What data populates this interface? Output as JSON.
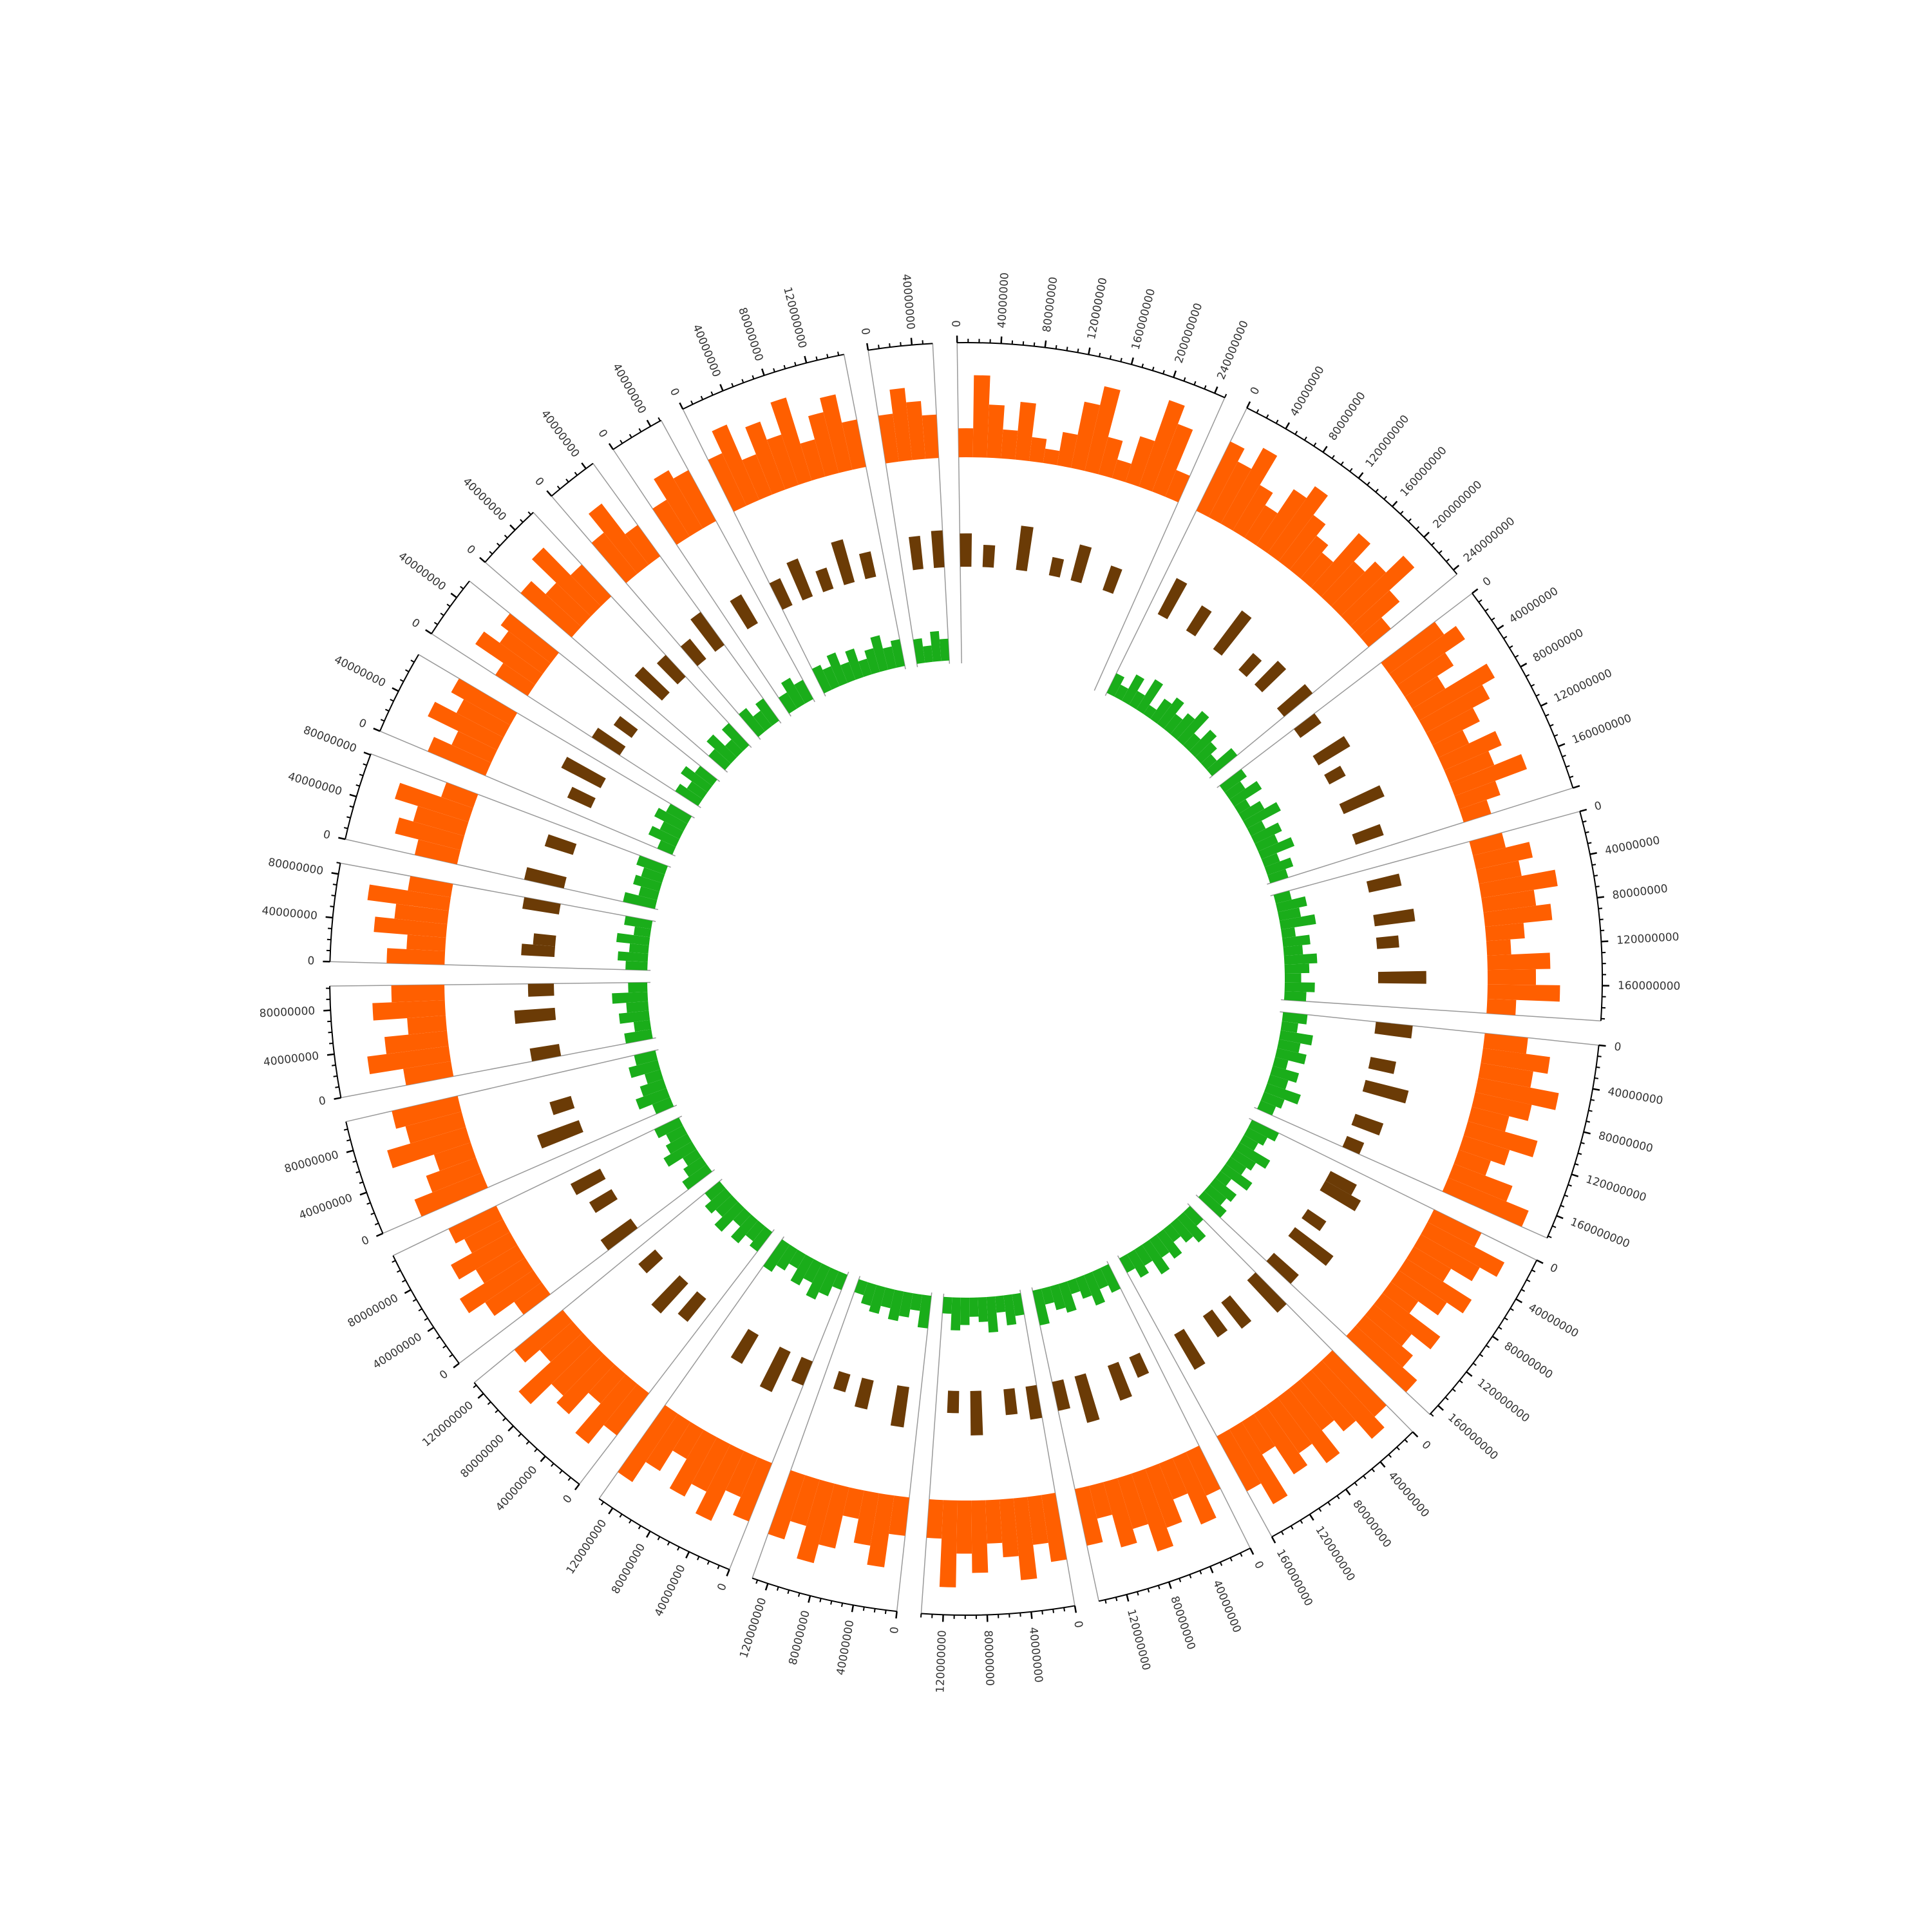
{
  "chart_data": {
    "type": "circos",
    "title": "",
    "colors": {
      "outer_track": "#ff5f00",
      "middle_track": "#6b3b06",
      "inner_track": "#1aad1a",
      "axis": "#000000",
      "separator": "#999999",
      "label": "#333333"
    },
    "grid": true,
    "tick_step": 40000000,
    "chromosomes": [
      {
        "length": 250000000,
        "tick_labels": [
          "0",
          "40000000",
          "80000000",
          "120000000",
          "160000000",
          "200000000",
          "240000000"
        ]
      },
      {
        "length": 245000000,
        "tick_labels": [
          "0",
          "40000000",
          "80000000",
          "120000000",
          "160000000",
          "200000000",
          "240000000"
        ]
      },
      {
        "length": 200000000,
        "tick_labels": [
          "0",
          "40000000",
          "80000000",
          "120000000",
          "160000000"
        ]
      },
      {
        "length": 192000000,
        "tick_labels": [
          "0",
          "40000000",
          "80000000",
          "120000000",
          "160000000"
        ]
      },
      {
        "length": 182000000,
        "tick_labels": [
          "0",
          "40000000",
          "80000000",
          "120000000",
          "160000000"
        ]
      },
      {
        "length": 171000000,
        "tick_labels": [
          "0",
          "40000000",
          "80000000",
          "120000000",
          "160000000"
        ]
      },
      {
        "length": 160000000,
        "tick_labels": [
          "0",
          "40000000",
          "80000000",
          "120000000",
          "160000000"
        ]
      },
      {
        "length": 146000000,
        "tick_labels": [
          "0",
          "40000000",
          "80000000",
          "120000000"
        ]
      },
      {
        "length": 140000000,
        "tick_labels": [
          "0",
          "40000000",
          "80000000",
          "120000000"
        ]
      },
      {
        "length": 135000000,
        "tick_labels": [
          "0",
          "40000000",
          "80000000",
          "120000000"
        ]
      },
      {
        "length": 135000000,
        "tick_labels": [
          "0",
          "40000000",
          "80000000",
          "120000000"
        ]
      },
      {
        "length": 133000000,
        "tick_labels": [
          "0",
          "40000000",
          "80000000",
          "120000000"
        ]
      },
      {
        "length": 115000000,
        "tick_labels": [
          "0",
          "40000000",
          "80000000"
        ]
      },
      {
        "length": 107000000,
        "tick_labels": [
          "0",
          "40000000",
          "80000000"
        ]
      },
      {
        "length": 102000000,
        "tick_labels": [
          "0",
          "40000000",
          "80000000"
        ]
      },
      {
        "length": 90000000,
        "tick_labels": [
          "0",
          "40000000",
          "80000000"
        ]
      },
      {
        "length": 81000000,
        "tick_labels": [
          "0",
          "40000000",
          "80000000"
        ]
      },
      {
        "length": 78000000,
        "tick_labels": [
          "0",
          "40000000"
        ]
      },
      {
        "length": 59000000,
        "tick_labels": [
          "0",
          "40000000"
        ]
      },
      {
        "length": 63000000,
        "tick_labels": [
          "0",
          "40000000"
        ]
      },
      {
        "length": 48000000,
        "tick_labels": [
          "0",
          "40000000"
        ]
      },
      {
        "length": 51000000,
        "tick_labels": [
          "0",
          "40000000"
        ]
      },
      {
        "length": 155000000,
        "tick_labels": [
          "0",
          "40000000",
          "80000000",
          "120000000"
        ]
      },
      {
        "length": 59000000,
        "tick_labels": [
          "0",
          "40000000"
        ]
      }
    ],
    "tracks": [
      {
        "values": [
          [
            0.3,
            0.85,
            0.55,
            0.3,
            0.6,
            0.25,
            0.15,
            0.35,
            0.7,
            0.9,
            0.4,
            0.2,
            0.5,
            0.95,
            0.75,
            0.3
          ],
          [
            0.8,
            0.65,
            0.9,
            0.55,
            0.4,
            0.7,
            0.85,
            0.6,
            0.45,
            0.35,
            0.75,
            0.5,
            0.65,
            0.9,
            0.55,
            0.3
          ],
          [
            0.7,
            0.85,
            0.6,
            0.4,
            0.9,
            0.75,
            0.55,
            0.35,
            0.65,
            0.5,
            0.8,
            0.45,
            0.3
          ],
          [
            0.35,
            0.6,
            0.45,
            0.8,
            0.55,
            0.7,
            0.4,
            0.25,
            0.65,
            0.5,
            0.75,
            0.3
          ],
          [
            0.45,
            0.7,
            0.55,
            0.85,
            0.6,
            0.4,
            0.75,
            0.5,
            0.35,
            0.65,
            0.9
          ],
          [
            0.55,
            0.9,
            0.7,
            0.45,
            0.8,
            0.6,
            0.35,
            0.75,
            0.5,
            0.65,
            0.85
          ],
          [
            0.8,
            0.95,
            0.7,
            0.55,
            0.85,
            0.6,
            0.75,
            0.4,
            0.9,
            0.65
          ],
          [
            0.5,
            0.75,
            0.4,
            0.65,
            0.85,
            0.55,
            0.7,
            0.35,
            0.6
          ],
          [
            0.7,
            0.5,
            0.85,
            0.6,
            0.45,
            0.75,
            0.55,
            0.9,
            0.4
          ],
          [
            0.4,
            0.75,
            0.55,
            0.3,
            0.65,
            0.85,
            0.5,
            0.7
          ],
          [
            0.65,
            0.45,
            0.8,
            0.55,
            0.7,
            0.35,
            0.6,
            0.85
          ],
          [
            0.55,
            0.8,
            0.4,
            0.7,
            0.6,
            0.9,
            0.45,
            0.65
          ],
          [
            0.35,
            0.6,
            0.8,
            0.5,
            0.7,
            0.45,
            0.55
          ],
          [
            0.75,
            0.55,
            0.4,
            0.85,
            0.6,
            0.7
          ],
          [
            0.5,
            0.85,
            0.65,
            0.4,
            0.75,
            0.55
          ],
          [
            0.6,
            0.4,
            0.75,
            0.55,
            0.85,
            0.45
          ],
          [
            0.45,
            0.7,
            0.55,
            0.8,
            0.35
          ],
          [
            0.65,
            0.45,
            0.8,
            0.55,
            0.7
          ],
          [
            0.4,
            0.75,
            0.55,
            0.65
          ],
          [
            0.7,
            0.5,
            0.85,
            0.45
          ],
          [
            0.55,
            0.8,
            0.4
          ],
          [
            0.45,
            0.7,
            0.6
          ],
          [
            0.6,
            0.85,
            0.45,
            0.75,
            0.55,
            0.9,
            0.4,
            0.65,
            0.8,
            0.5
          ],
          [
            0.5,
            0.75,
            0.6,
            0.45
          ]
        ]
      },
      {
        "values": [
          [
            0.45,
            0,
            0.3,
            0,
            0,
            0.6,
            0,
            0,
            0.25,
            0,
            0.5,
            0,
            0,
            0.35,
            0,
            0
          ],
          [
            0,
            0.55,
            0,
            0,
            0.4,
            0,
            0,
            0.65,
            0,
            0,
            0.3,
            0,
            0.45,
            0,
            0,
            0.5
          ],
          [
            0.35,
            0,
            0,
            0.5,
            0,
            0.25,
            0,
            0,
            0.6,
            0,
            0,
            0.4,
            0
          ],
          [
            0,
            0.45,
            0,
            0,
            0.55,
            0,
            0.3,
            0,
            0,
            0.65,
            0,
            0
          ],
          [
            0.5,
            0,
            0,
            0.35,
            0,
            0.6,
            0,
            0,
            0.4,
            0,
            0.25
          ],
          [
            0,
            0.4,
            0.55,
            0,
            0,
            0.3,
            0,
            0.65,
            0,
            0,
            0.45
          ],
          [
            0.6,
            0,
            0,
            0.45,
            0,
            0.35,
            0,
            0,
            0.55,
            0
          ],
          [
            0,
            0.3,
            0,
            0.5,
            0,
            0,
            0.65,
            0,
            0.4
          ],
          [
            0.45,
            0,
            0.35,
            0,
            0,
            0.6,
            0,
            0.3,
            0
          ],
          [
            0,
            0.55,
            0,
            0,
            0.4,
            0,
            0.25,
            0
          ],
          [
            0.35,
            0,
            0.6,
            0,
            0,
            0.45,
            0,
            0
          ],
          [
            0,
            0.4,
            0,
            0.55,
            0,
            0,
            0.3,
            0
          ],
          [
            0.5,
            0,
            0,
            0.35,
            0,
            0.45,
            0
          ],
          [
            0,
            0.6,
            0,
            0.3,
            0,
            0
          ],
          [
            0.4,
            0,
            0,
            0.55,
            0,
            0.35
          ],
          [
            0,
            0.45,
            0.3,
            0,
            0,
            0.5
          ],
          [
            0.55,
            0,
            0,
            0.4,
            0
          ],
          [
            0,
            0.35,
            0,
            0.6,
            0
          ],
          [
            0.45,
            0,
            0.3,
            0
          ],
          [
            0,
            0.5,
            0,
            0.4
          ],
          [
            0.35,
            0,
            0.55
          ],
          [
            0,
            0.45,
            0
          ],
          [
            0.4,
            0,
            0.55,
            0,
            0.3,
            0,
            0.6,
            0,
            0.35,
            0
          ],
          [
            0,
            0.45,
            0,
            0.5
          ]
        ]
      },
      {
        "values": [
          [
            0,
            0,
            0,
            0,
            0,
            0,
            0,
            0,
            0,
            0,
            0,
            0,
            0,
            0,
            0,
            0
          ],
          [
            0.4,
            0.25,
            0.55,
            0.3,
            0.65,
            0.2,
            0.45,
            0.6,
            0.35,
            0.5,
            0.7,
            0.3,
            0.55,
            0.4,
            0.25,
            0.6
          ],
          [
            0.5,
            0.35,
            0.6,
            0.25,
            0.45,
            0.7,
            0.3,
            0.55,
            0.4,
            0.65,
            0.3,
            0.5,
            0.35
          ],
          [
            0.3,
            0.55,
            0.4,
            0.65,
            0.25,
            0.5,
            0.35,
            0.6,
            0.45,
            0.3,
            0.55,
            0.4
          ],
          [
            0.45,
            0.3,
            0.6,
            0.4,
            0.55,
            0.25,
            0.5,
            0.35,
            0.65,
            0.4,
            0.3
          ],
          [
            0.55,
            0.4,
            0.3,
            0.65,
            0.45,
            0.35,
            0.6,
            0.25,
            0.5,
            0.4,
            0.55
          ],
          [
            0.35,
            0.6,
            0.45,
            0.3,
            0.55,
            0.4,
            0.65,
            0.35,
            0.5,
            0.3
          ],
          [
            0.5,
            0.35,
            0.6,
            0.4,
            0.25,
            0.55,
            0.45,
            0.3,
            0.65
          ],
          [
            0.4,
            0.55,
            0.3,
            0.65,
            0.45,
            0.35,
            0.5,
            0.6,
            0.3
          ],
          [
            0.6,
            0.3,
            0.45,
            0.55,
            0.35,
            0.5,
            0.4,
            0.25
          ],
          [
            0.3,
            0.5,
            0.65,
            0.4,
            0.55,
            0.3,
            0.45,
            0.6
          ],
          [
            0.45,
            0.35,
            0.55,
            0.3,
            0.6,
            0.4,
            0.5,
            0.35
          ],
          [
            0.55,
            0.4,
            0.3,
            0.6,
            0.45,
            0.35,
            0.5
          ],
          [
            0.35,
            0.6,
            0.45,
            0.3,
            0.55,
            0.4
          ],
          [
            0.5,
            0.3,
            0.55,
            0.4,
            0.65,
            0.35
          ],
          [
            0.4,
            0.55,
            0.35,
            0.6,
            0.3,
            0.5
          ],
          [
            0.6,
            0.35,
            0.5,
            0.4,
            0.55
          ],
          [
            0.3,
            0.55,
            0.4,
            0.6,
            0.45
          ],
          [
            0.5,
            0.35,
            0.6,
            0.4
          ],
          [
            0.4,
            0.6,
            0.3,
            0.55
          ],
          [
            0.55,
            0.35,
            0.5
          ],
          [
            0.35,
            0.55,
            0.4
          ],
          [
            0.5,
            0.4,
            0.6,
            0.35,
            0.55,
            0.3,
            0.45,
            0.65,
            0.4,
            0.5
          ],
          [
            0.45,
            0.3,
            0.55,
            0.4
          ]
        ]
      }
    ]
  }
}
